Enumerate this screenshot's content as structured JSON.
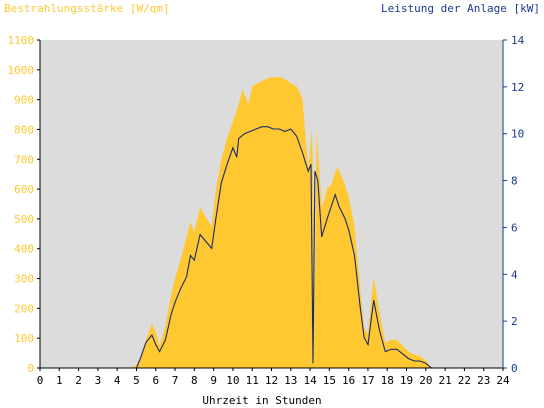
{
  "chart_data": {
    "type": "area",
    "title_left": "Bestrahlungsstärke [W/qm]",
    "title_right": "Leistung der Anlage [kW]",
    "xlabel": "Uhrzeit in Stunden",
    "x_range": [
      0,
      24
    ],
    "y_left_range": [
      0,
      1100
    ],
    "y_right_range": [
      0,
      14
    ],
    "x_ticks": [
      "0",
      "1",
      "2",
      "3",
      "4",
      "5",
      "6",
      "7",
      "8",
      "9",
      "10",
      "11",
      "12",
      "13",
      "14",
      "15",
      "16",
      "17",
      "18",
      "19",
      "20",
      "21",
      "22",
      "23",
      "24"
    ],
    "y_left_ticks": [
      "0",
      "100",
      "200",
      "300",
      "400",
      "500",
      "600",
      "700",
      "800",
      "900",
      "1000",
      "1100"
    ],
    "y_right_ticks": [
      "0",
      "2",
      "4",
      "6",
      "8",
      "10",
      "12",
      "14"
    ],
    "colors": {
      "irradiance": "#FFC830",
      "power": "#1A2A6C",
      "plot_bg": "#DCDCDC",
      "left_axis_text": "#FFC830",
      "right_axis_text": "#1A3A8A"
    },
    "series": [
      {
        "name": "Bestrahlungsstärke [W/qm]",
        "axis": "left",
        "points": [
          [
            0,
            0
          ],
          [
            4.5,
            0
          ],
          [
            4.8,
            3
          ],
          [
            5.0,
            10
          ],
          [
            5.2,
            35
          ],
          [
            5.5,
            95
          ],
          [
            5.8,
            150
          ],
          [
            6.0,
            120
          ],
          [
            6.2,
            75
          ],
          [
            6.5,
            140
          ],
          [
            6.8,
            245
          ],
          [
            7.0,
            300
          ],
          [
            7.3,
            365
          ],
          [
            7.6,
            440
          ],
          [
            7.8,
            490
          ],
          [
            8.0,
            455
          ],
          [
            8.3,
            540
          ],
          [
            8.6,
            505
          ],
          [
            8.9,
            475
          ],
          [
            9.1,
            590
          ],
          [
            9.4,
            700
          ],
          [
            9.7,
            770
          ],
          [
            10.0,
            825
          ],
          [
            10.3,
            885
          ],
          [
            10.5,
            935
          ],
          [
            10.8,
            885
          ],
          [
            11.0,
            945
          ],
          [
            11.3,
            955
          ],
          [
            11.6,
            965
          ],
          [
            11.9,
            975
          ],
          [
            12.2,
            975
          ],
          [
            12.5,
            975
          ],
          [
            12.8,
            965
          ],
          [
            13.0,
            955
          ],
          [
            13.3,
            945
          ],
          [
            13.6,
            905
          ],
          [
            13.9,
            665
          ],
          [
            14.1,
            805
          ],
          [
            14.25,
            280
          ],
          [
            14.35,
            805
          ],
          [
            14.6,
            535
          ],
          [
            14.9,
            605
          ],
          [
            15.1,
            615
          ],
          [
            15.4,
            675
          ],
          [
            15.7,
            635
          ],
          [
            16.0,
            575
          ],
          [
            16.3,
            475
          ],
          [
            16.6,
            265
          ],
          [
            16.8,
            135
          ],
          [
            17.0,
            115
          ],
          [
            17.3,
            305
          ],
          [
            17.6,
            185
          ],
          [
            17.9,
            85
          ],
          [
            18.2,
            95
          ],
          [
            18.5,
            95
          ],
          [
            18.8,
            75
          ],
          [
            19.1,
            55
          ],
          [
            19.4,
            45
          ],
          [
            19.7,
            40
          ],
          [
            20.0,
            25
          ],
          [
            20.3,
            0
          ],
          [
            24,
            0
          ]
        ]
      },
      {
        "name": "Leistung der Anlage [kW]",
        "axis": "right",
        "points": [
          [
            0,
            0
          ],
          [
            5.0,
            0
          ],
          [
            5.2,
            0.4
          ],
          [
            5.5,
            1.1
          ],
          [
            5.8,
            1.4
          ],
          [
            6.0,
            1.0
          ],
          [
            6.2,
            0.7
          ],
          [
            6.5,
            1.2
          ],
          [
            6.8,
            2.3
          ],
          [
            7.0,
            2.8
          ],
          [
            7.3,
            3.4
          ],
          [
            7.6,
            3.9
          ],
          [
            7.8,
            4.8
          ],
          [
            8.0,
            4.6
          ],
          [
            8.3,
            5.7
          ],
          [
            8.6,
            5.4
          ],
          [
            8.9,
            5.1
          ],
          [
            9.1,
            6.3
          ],
          [
            9.4,
            7.9
          ],
          [
            9.7,
            8.7
          ],
          [
            10.0,
            9.4
          ],
          [
            10.2,
            9.0
          ],
          [
            10.3,
            9.8
          ],
          [
            10.6,
            10.0
          ],
          [
            10.9,
            10.1
          ],
          [
            11.2,
            10.2
          ],
          [
            11.5,
            10.3
          ],
          [
            11.8,
            10.3
          ],
          [
            12.1,
            10.2
          ],
          [
            12.4,
            10.2
          ],
          [
            12.7,
            10.1
          ],
          [
            13.0,
            10.2
          ],
          [
            13.3,
            9.9
          ],
          [
            13.6,
            9.2
          ],
          [
            13.9,
            8.4
          ],
          [
            14.05,
            8.7
          ],
          [
            14.15,
            0.2
          ],
          [
            14.25,
            8.4
          ],
          [
            14.4,
            8.0
          ],
          [
            14.6,
            5.6
          ],
          [
            14.9,
            6.4
          ],
          [
            15.1,
            6.9
          ],
          [
            15.3,
            7.4
          ],
          [
            15.5,
            6.9
          ],
          [
            15.8,
            6.4
          ],
          [
            16.0,
            5.9
          ],
          [
            16.3,
            4.8
          ],
          [
            16.6,
            2.6
          ],
          [
            16.8,
            1.3
          ],
          [
            17.0,
            1.0
          ],
          [
            17.3,
            2.9
          ],
          [
            17.6,
            1.6
          ],
          [
            17.9,
            0.7
          ],
          [
            18.2,
            0.8
          ],
          [
            18.5,
            0.8
          ],
          [
            18.8,
            0.6
          ],
          [
            19.1,
            0.4
          ],
          [
            19.4,
            0.3
          ],
          [
            19.7,
            0.3
          ],
          [
            20.0,
            0.2
          ],
          [
            20.3,
            0
          ],
          [
            24,
            0
          ]
        ]
      }
    ]
  }
}
